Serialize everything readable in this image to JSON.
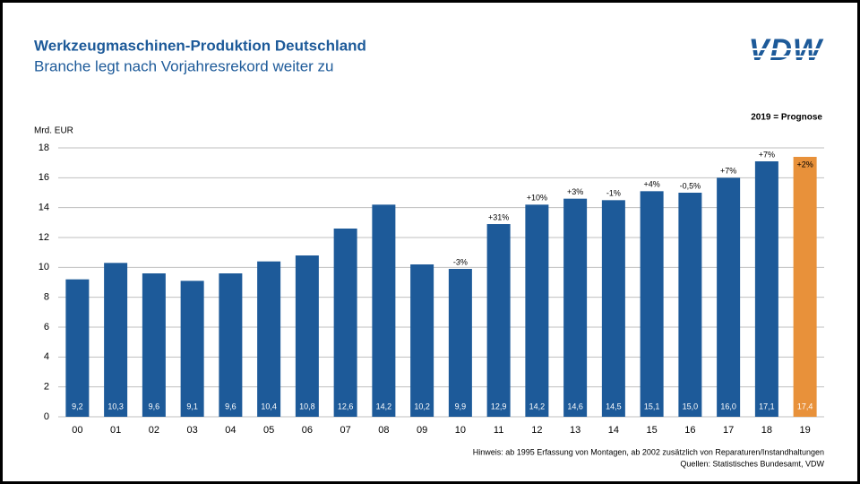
{
  "chart_data": {
    "type": "bar",
    "title": "Werkzeugmaschinen-Produktion Deutschland",
    "subtitle": "Branche legt nach Vorjahresrekord weiter zu",
    "logo": "VDW",
    "note": "2019 = Prognose",
    "ylabel": "Mrd. EUR",
    "footnotes": [
      "Hinweis: ab 1995 Erfassung von Montagen, ab 2002 zusätzlich von Reparaturen/Instandhaltungen",
      "Quellen: Statistisches Bundesamt, VDW"
    ],
    "categories": [
      "00",
      "01",
      "02",
      "03",
      "04",
      "05",
      "06",
      "07",
      "08",
      "09",
      "10",
      "11",
      "12",
      "13",
      "14",
      "15",
      "16",
      "17",
      "18",
      "19"
    ],
    "values": [
      9.2,
      10.3,
      9.6,
      9.1,
      9.6,
      10.4,
      10.8,
      12.6,
      14.2,
      10.2,
      9.9,
      12.9,
      14.2,
      14.6,
      14.5,
      15.1,
      15.0,
      16.0,
      17.1,
      17.4
    ],
    "value_labels": [
      "9,2",
      "10,3",
      "9,6",
      "9,1",
      "9,6",
      "10,4",
      "10,8",
      "12,6",
      "14,2",
      "10,2",
      "9,9",
      "12,9",
      "14,2",
      "14,6",
      "14,5",
      "15,1",
      "15,0",
      "16,0",
      "17,1",
      "17,4"
    ],
    "annotations": [
      null,
      null,
      null,
      null,
      null,
      null,
      null,
      null,
      null,
      null,
      "-3%",
      "+31%",
      "+10%",
      "+3%",
      "-1%",
      "+4%",
      "-0,5%",
      "+7%",
      "+7%",
      "+2%"
    ],
    "colors": [
      "#1d5a99",
      "#1d5a99",
      "#1d5a99",
      "#1d5a99",
      "#1d5a99",
      "#1d5a99",
      "#1d5a99",
      "#1d5a99",
      "#1d5a99",
      "#1d5a99",
      "#1d5a99",
      "#1d5a99",
      "#1d5a99",
      "#1d5a99",
      "#1d5a99",
      "#1d5a99",
      "#1d5a99",
      "#1d5a99",
      "#1d5a99",
      "#e8913a"
    ],
    "ylim": [
      0,
      18
    ],
    "yticks": [
      0,
      2,
      4,
      6,
      8,
      10,
      12,
      14,
      16,
      18
    ],
    "grid": true
  }
}
